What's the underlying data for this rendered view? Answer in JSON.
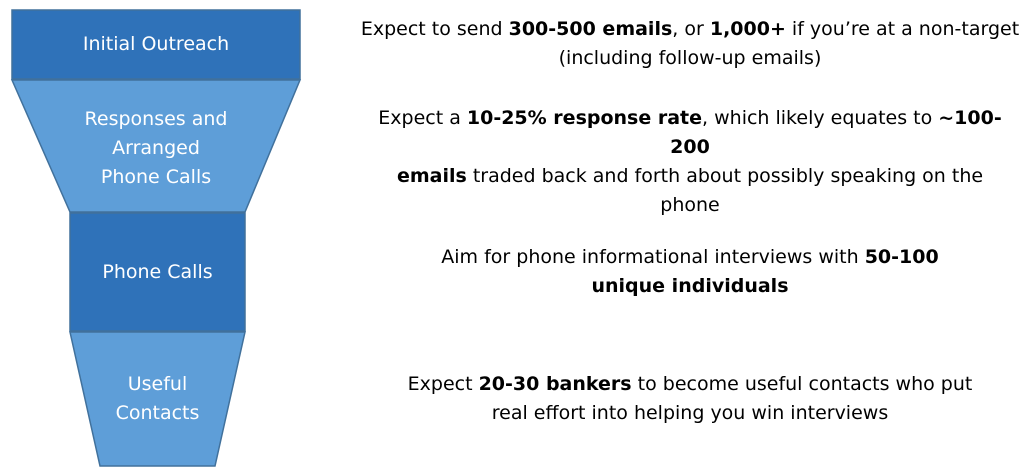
{
  "colors": {
    "funnel_dark": "#2f72b9",
    "funnel_light": "#5e9ed8",
    "outline": "#41719c",
    "label_text": "#ffffff",
    "body_text": "#000000"
  },
  "funnel": {
    "stages": [
      {
        "lines": [
          "Initial Outreach"
        ]
      },
      {
        "lines": [
          "Responses and",
          "Arranged",
          "Phone Calls"
        ]
      },
      {
        "lines": [
          "Phone Calls"
        ]
      },
      {
        "lines": [
          "Useful",
          "Contacts"
        ]
      }
    ]
  },
  "descriptions": [
    {
      "line1": {
        "pre": "Expect to send ",
        "b1": "300-500 emails",
        "mid": ", or ",
        "b2": "1,000+",
        "post": " if you’re at a non-target"
      },
      "line2": "(including follow-up emails)"
    },
    {
      "line1": {
        "pre": "Expect a ",
        "b1": "10-25% response rate",
        "mid": ", which likely equates to ",
        "b2": "~100-200"
      },
      "line2": {
        "b1": "emails",
        "post": " traded back and forth about possibly speaking on the"
      },
      "line3": "phone"
    },
    {
      "line1": {
        "pre": "Aim for phone informational interviews with ",
        "b1": "50-100"
      },
      "line2": {
        "b1": "unique individuals"
      }
    },
    {
      "line1": {
        "pre": "Expect ",
        "b1": "20-30 bankers",
        "post": " to become useful contacts who put"
      },
      "line2": "real effort into helping you win interviews"
    }
  ]
}
